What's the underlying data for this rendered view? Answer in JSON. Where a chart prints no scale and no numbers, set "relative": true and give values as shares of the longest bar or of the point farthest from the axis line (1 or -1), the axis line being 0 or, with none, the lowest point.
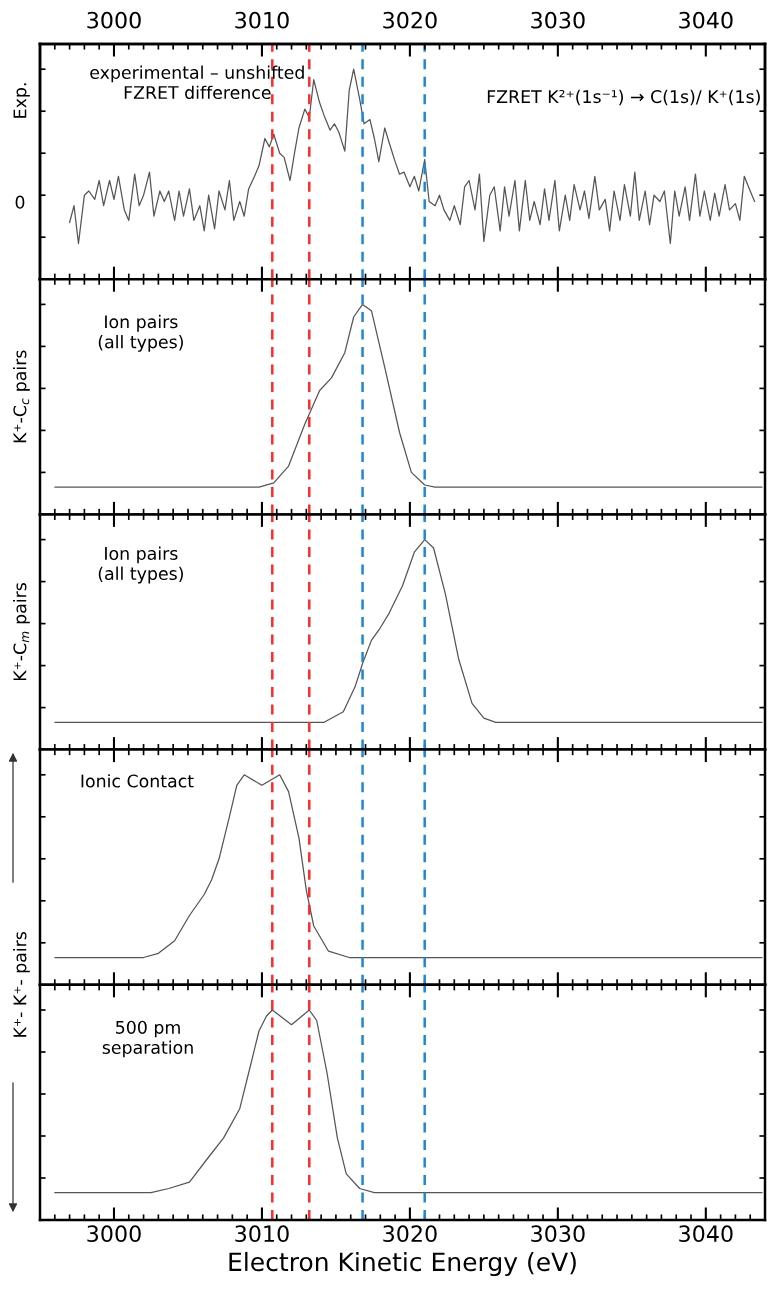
{
  "chart_data": [
    {
      "type": "line",
      "ylabel": "Exp.",
      "relative": true,
      "color": "#555555",
      "line_style": "solid",
      "annotations": [
        "experimental – unshifted\nFZRET difference",
        "FZRET K²⁺(1s⁻¹) → C(1s)/ K⁺(1s)",
        "0"
      ],
      "x": [
        2997.0,
        2997.3,
        2997.6,
        2998.0,
        2998.3,
        2998.7,
        2999.0,
        2999.3,
        2999.7,
        3000.0,
        3000.3,
        3000.7,
        3001.0,
        3001.4,
        3001.7,
        3002.0,
        3002.4,
        3002.7,
        3003.1,
        3003.4,
        3003.7,
        3004.1,
        3004.4,
        3004.7,
        3005.1,
        3005.4,
        3005.8,
        3006.1,
        3006.4,
        3006.8,
        3007.1,
        3007.5,
        3007.8,
        3008.1,
        3008.5,
        3008.8,
        3009.1,
        3009.5,
        3009.8,
        3010.2,
        3010.5,
        3010.8,
        3011.2,
        3011.5,
        3011.9,
        3012.2,
        3012.5,
        3012.9,
        3013.2,
        3013.5,
        3013.9,
        3014.2,
        3014.6,
        3014.9,
        3015.2,
        3015.6,
        3015.9,
        3016.2,
        3016.6,
        3016.9,
        3017.3,
        3017.6,
        3017.9,
        3018.3,
        3018.6,
        3019.0,
        3019.3,
        3019.6,
        3020.0,
        3020.3,
        3020.6,
        3021.0,
        3021.3,
        3021.7,
        3022.0,
        3022.3,
        3022.7,
        3023.0,
        3023.4,
        3023.7,
        3024.0,
        3024.4,
        3024.7,
        3025.0,
        3025.4,
        3025.7,
        3026.1,
        3026.4,
        3026.7,
        3027.1,
        3027.4,
        3027.8,
        3028.1,
        3028.4,
        3028.8,
        3029.1,
        3029.4,
        3029.8,
        3030.1,
        3030.5,
        3030.8,
        3031.1,
        3031.5,
        3031.8,
        3032.1,
        3032.5,
        3032.8,
        3033.2,
        3033.5,
        3033.8,
        3034.2,
        3034.5,
        3034.9,
        3035.2,
        3035.5,
        3035.9,
        3036.2,
        3036.5,
        3036.9,
        3037.2,
        3037.6,
        3037.9,
        3038.2,
        3038.6,
        3038.9,
        3039.3,
        3039.6,
        3039.9,
        3040.3,
        3040.6,
        3040.9,
        3041.3,
        3041.6,
        3042.0,
        3042.3,
        3042.6,
        3043.0,
        3043.3
      ],
      "values": [
        0.27,
        0.35,
        0.17,
        0.4,
        0.42,
        0.38,
        0.47,
        0.35,
        0.47,
        0.38,
        0.49,
        0.33,
        0.28,
        0.5,
        0.35,
        0.4,
        0.51,
        0.3,
        0.42,
        0.37,
        0.42,
        0.28,
        0.42,
        0.3,
        0.43,
        0.28,
        0.35,
        0.23,
        0.4,
        0.24,
        0.42,
        0.33,
        0.47,
        0.28,
        0.37,
        0.3,
        0.43,
        0.49,
        0.54,
        0.67,
        0.63,
        0.69,
        0.6,
        0.58,
        0.47,
        0.6,
        0.72,
        0.81,
        0.77,
        0.95,
        0.84,
        0.78,
        0.71,
        0.74,
        0.7,
        0.61,
        0.9,
        1.0,
        0.86,
        0.74,
        0.76,
        0.67,
        0.56,
        0.72,
        0.65,
        0.56,
        0.5,
        0.51,
        0.44,
        0.49,
        0.42,
        0.57,
        0.37,
        0.35,
        0.4,
        0.33,
        0.28,
        0.35,
        0.26,
        0.44,
        0.47,
        0.33,
        0.5,
        0.18,
        0.4,
        0.44,
        0.23,
        0.44,
        0.3,
        0.47,
        0.23,
        0.47,
        0.28,
        0.37,
        0.26,
        0.43,
        0.28,
        0.47,
        0.23,
        0.4,
        0.28,
        0.45,
        0.33,
        0.42,
        0.29,
        0.49,
        0.33,
        0.38,
        0.23,
        0.42,
        0.28,
        0.45,
        0.3,
        0.51,
        0.28,
        0.42,
        0.26,
        0.4,
        0.37,
        0.42,
        0.17,
        0.42,
        0.3,
        0.44,
        0.28,
        0.5,
        0.3,
        0.42,
        0.28,
        0.41,
        0.3,
        0.45,
        0.33,
        0.36,
        0.28,
        0.49,
        0.42,
        0.37
      ],
      "xlim": [
        2995,
        3044
      ],
      "xticks": [
        3000,
        3010,
        3020,
        3030,
        3040
      ],
      "x2lim": [
        2995,
        3044
      ],
      "x2ticks": [
        3000,
        3010,
        3020,
        3030,
        3040
      ],
      "tick_labels": false,
      "ref_lines": [
        {
          "axis": "x",
          "value": 3010.7,
          "color": "#ff2a2a",
          "line_style": "dashed"
        },
        {
          "axis": "x",
          "value": 3013.2,
          "color": "#ff2a2a",
          "line_style": "dashed"
        },
        {
          "axis": "x",
          "value": 3016.8,
          "color": "#1f86d6",
          "line_style": "dashed"
        },
        {
          "axis": "x",
          "value": 3021.0,
          "color": "#1f86d6",
          "line_style": "dashed"
        }
      ]
    },
    {
      "type": "line",
      "ylabel": "K⁺-C$_{c}$ pairs",
      "relative": true,
      "color": "#555555",
      "line_style": "solid",
      "annotations": [
        "Ion pairs\n(all types)"
      ],
      "x": [
        2996.0,
        3009.8,
        3010.8,
        3011.8,
        3012.9,
        3013.9,
        3014.7,
        3015.6,
        3016.2,
        3016.8,
        3017.4,
        3018.3,
        3019.3,
        3020.1,
        3021.0,
        3021.7,
        3043.8
      ],
      "values": [
        0.13,
        0.13,
        0.15,
        0.23,
        0.43,
        0.59,
        0.65,
        0.77,
        0.94,
        1,
        0.97,
        0.7,
        0.39,
        0.2,
        0.14,
        0.13,
        0.13
      ],
      "xlim": [
        2995,
        3044
      ],
      "xticks": [
        3000,
        3010,
        3020,
        3030,
        3040
      ],
      "tick_labels": false,
      "ref_lines": [
        {
          "axis": "x",
          "value": 3010.7,
          "color": "#ff2a2a",
          "line_style": "dashed"
        },
        {
          "axis": "x",
          "value": 3013.2,
          "color": "#ff2a2a",
          "line_style": "dashed"
        },
        {
          "axis": "x",
          "value": 3016.8,
          "color": "#1f86d6",
          "line_style": "dashed"
        },
        {
          "axis": "x",
          "value": 3021.0,
          "color": "#1f86d6",
          "line_style": "dashed"
        }
      ]
    },
    {
      "type": "line",
      "ylabel": "K⁺-C$_{m}$ pairs",
      "relative": true,
      "color": "#555555",
      "line_style": "solid",
      "annotations": [
        "Ion pairs\n(all types)"
      ],
      "x": [
        2996.0,
        3014.2,
        3015.5,
        3016.3,
        3016.8,
        3017.4,
        3018.0,
        3018.6,
        3019.5,
        3020.3,
        3021.0,
        3021.6,
        3022.4,
        3023.3,
        3024.2,
        3025.0,
        3025.8,
        3043.8
      ],
      "values": [
        0.13,
        0.13,
        0.18,
        0.3,
        0.41,
        0.52,
        0.58,
        0.65,
        0.78,
        0.94,
        1,
        0.96,
        0.74,
        0.43,
        0.22,
        0.15,
        0.13,
        0.13
      ],
      "xlim": [
        2995,
        3044
      ],
      "xticks": [
        3000,
        3010,
        3020,
        3030,
        3040
      ],
      "tick_labels": false,
      "ref_lines": [
        {
          "axis": "x",
          "value": 3010.7,
          "color": "#ff2a2a",
          "line_style": "dashed"
        },
        {
          "axis": "x",
          "value": 3013.2,
          "color": "#ff2a2a",
          "line_style": "dashed"
        },
        {
          "axis": "x",
          "value": 3016.8,
          "color": "#1f86d6",
          "line_style": "dashed"
        },
        {
          "axis": "x",
          "value": 3021.0,
          "color": "#1f86d6",
          "line_style": "dashed"
        }
      ]
    },
    {
      "type": "line",
      "ylabel": "K⁺- K⁺- pairs",
      "relative": true,
      "color": "#555555",
      "line_style": "solid",
      "annotations": [
        "Ionic Contact"
      ],
      "x": [
        2996.0,
        3002.0,
        3003.0,
        3004.1,
        3005.1,
        3006.1,
        3006.6,
        3007.1,
        3007.8,
        3008.3,
        3008.8,
        3010.0,
        3011.2,
        3011.8,
        3012.5,
        3013.0,
        3013.5,
        3014.5,
        3015.9,
        3043.8
      ],
      "values": [
        0.13,
        0.13,
        0.15,
        0.21,
        0.33,
        0.43,
        0.5,
        0.6,
        0.8,
        0.95,
        1,
        0.95,
        1,
        0.92,
        0.7,
        0.45,
        0.28,
        0.16,
        0.13,
        0.13
      ],
      "xlim": [
        2995,
        3044
      ],
      "xticks": [
        3000,
        3010,
        3020,
        3030,
        3040
      ],
      "tick_labels": false,
      "ref_lines": [
        {
          "axis": "x",
          "value": 3010.7,
          "color": "#ff2a2a",
          "line_style": "dashed"
        },
        {
          "axis": "x",
          "value": 3013.2,
          "color": "#ff2a2a",
          "line_style": "dashed"
        },
        {
          "axis": "x",
          "value": 3016.8,
          "color": "#1f86d6",
          "line_style": "dashed"
        },
        {
          "axis": "x",
          "value": 3021.0,
          "color": "#1f86d6",
          "line_style": "dashed"
        }
      ]
    },
    {
      "type": "line",
      "xlabel": "Electron Kinetic Energy (eV)",
      "relative": true,
      "color": "#555555",
      "line_style": "solid",
      "annotations": [
        "500 pm\nseparation"
      ],
      "x": [
        2996.0,
        3002.5,
        3003.7,
        3005.1,
        3006.4,
        3007.4,
        3008.5,
        3009.1,
        3009.8,
        3010.3,
        3010.7,
        3012.0,
        3013.2,
        3013.7,
        3014.4,
        3015.1,
        3015.7,
        3016.6,
        3017.6,
        3043.8
      ],
      "values": [
        0.13,
        0.13,
        0.15,
        0.18,
        0.3,
        0.39,
        0.53,
        0.7,
        0.9,
        0.97,
        1,
        0.93,
        1,
        0.95,
        0.7,
        0.39,
        0.22,
        0.15,
        0.13,
        0.13
      ],
      "xlim": [
        2995,
        3044
      ],
      "xticks": [
        3000,
        3010,
        3020,
        3030,
        3040
      ],
      "tick_labels": "x",
      "ref_lines": [
        {
          "axis": "x",
          "value": 3010.7,
          "color": "#ff2a2a",
          "line_style": "dashed"
        },
        {
          "axis": "x",
          "value": 3013.2,
          "color": "#ff2a2a",
          "line_style": "dashed"
        },
        {
          "axis": "x",
          "value": 3016.8,
          "color": "#1f86d6",
          "line_style": "dashed"
        },
        {
          "axis": "x",
          "value": 3021.0,
          "color": "#1f86d6",
          "line_style": "dashed"
        }
      ]
    }
  ]
}
